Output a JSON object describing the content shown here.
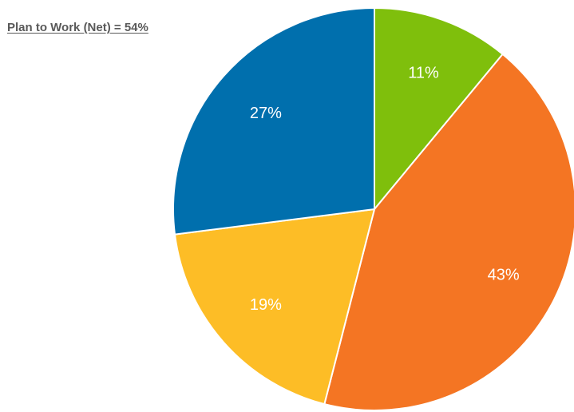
{
  "chart_data": {
    "type": "pie",
    "title": "",
    "annotation": "Plan to Work (Net) = 54%",
    "slices": [
      {
        "value": 11,
        "label": "11%",
        "color": "#7fbf0c"
      },
      {
        "value": 43,
        "label": "43%",
        "color": "#f47523"
      },
      {
        "value": 19,
        "label": "19%",
        "color": "#fdbd26"
      },
      {
        "value": 27,
        "label": "27%",
        "color": "#006fad"
      }
    ],
    "start_angle_deg": 0,
    "direction": "clockwise",
    "legend": "none"
  }
}
